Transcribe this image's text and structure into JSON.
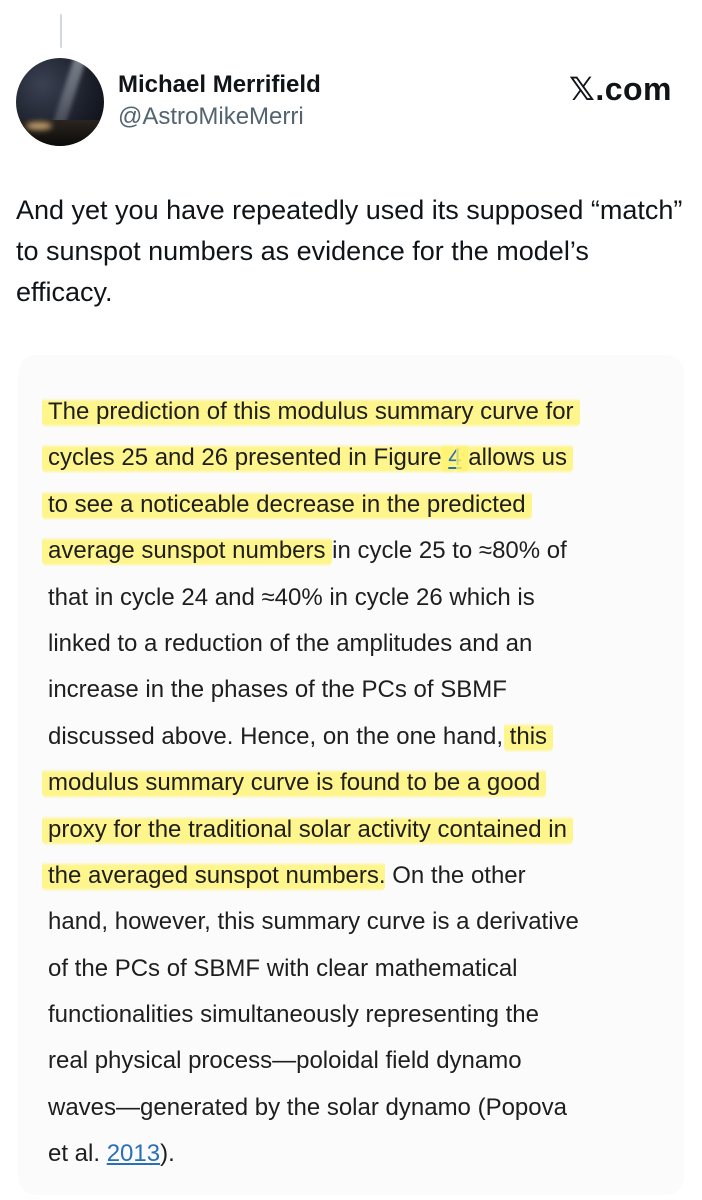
{
  "post": {
    "author_name": "Michael Merrifield",
    "handle": "@AstroMikeMerri",
    "brand": "𝕏.com",
    "text": "And yet you have repeatedly used its supposed “match” to sunspot numbers as evidence for the model’s efficacy."
  },
  "quote": {
    "lines": [
      [
        {
          "t": "The prediction of this modulus summary curve for",
          "hl": true
        }
      ],
      [
        {
          "t": "cycles 25 and 26 presented in Figure ",
          "hl": true
        },
        {
          "t": "4",
          "hl": true,
          "link": true
        },
        {
          "t": " allows us",
          "hl": true
        }
      ],
      [
        {
          "t": "to see a noticeable decrease in the predicted",
          "hl": true
        }
      ],
      [
        {
          "t": "average sunspot numbers",
          "hl": true
        },
        {
          "t": " in cycle 25 to ≈80% of"
        }
      ],
      [
        {
          "t": "that in cycle 24 and ≈40% in cycle 26 which is"
        }
      ],
      [
        {
          "t": "linked to a reduction of the amplitudes and an"
        }
      ],
      [
        {
          "t": "increase in the phases of the PCs of SBMF"
        }
      ],
      [
        {
          "t": "discussed above. Hence, on the one hand, "
        },
        {
          "t": "this",
          "hl": true
        }
      ],
      [
        {
          "t": "modulus summary curve is found to be a good",
          "hl": true
        }
      ],
      [
        {
          "t": "proxy for the traditional solar activity contained in",
          "hl": true
        }
      ],
      [
        {
          "t": "the averaged sunspot numbers",
          "hl": true
        },
        {
          "t": ". On the other"
        }
      ],
      [
        {
          "t": "hand, however, this summary curve is a derivative"
        }
      ],
      [
        {
          "t": "of the PCs of SBMF with clear mathematical"
        }
      ],
      [
        {
          "t": "functionalities simultaneously representing the"
        }
      ],
      [
        {
          "t": "real physical process—poloidal field dynamo"
        }
      ],
      [
        {
          "t": "waves—generated by the solar dynamo (Popova"
        }
      ],
      [
        {
          "t": "et al. "
        },
        {
          "t": "2013",
          "link": true
        },
        {
          "t": ")."
        }
      ]
    ]
  },
  "colors": {
    "highlight": "#fff36e",
    "link": "#2a6fb8",
    "text": "#0f1419",
    "secondary": "#536471"
  }
}
